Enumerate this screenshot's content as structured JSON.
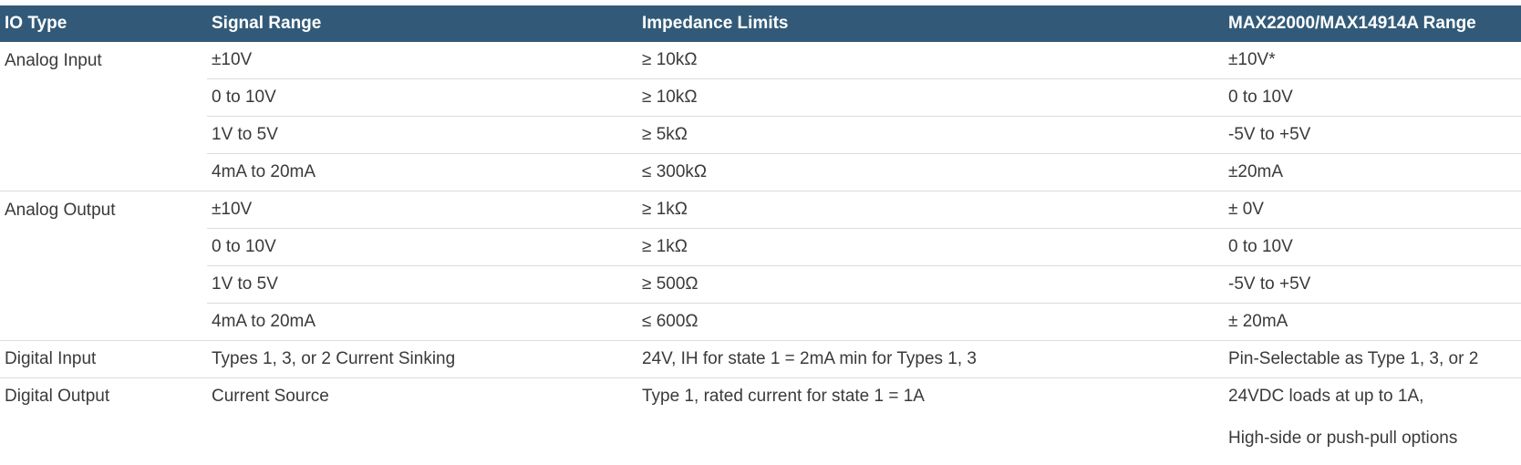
{
  "headers": [
    "IO Type",
    "Signal Range",
    "Impedance Limits",
    "MAX22000/MAX14914A Range"
  ],
  "groups": [
    {
      "io_type": "Analog Input",
      "rows": [
        {
          "signal": "±10V",
          "impedance": "≥ 10kΩ",
          "range": "±10V*"
        },
        {
          "signal": "0 to 10V",
          "impedance": "≥ 10kΩ",
          "range": "0 to 10V"
        },
        {
          "signal": "1V to 5V",
          "impedance": "≥ 5kΩ",
          "range": "-5V to +5V"
        },
        {
          "signal": "4mA to 20mA",
          "impedance": "≤ 300kΩ",
          "range": "±20mA"
        }
      ]
    },
    {
      "io_type": "Analog Output",
      "rows": [
        {
          "signal": "±10V",
          "impedance": "≥ 1kΩ",
          "range": "± 0V"
        },
        {
          "signal": "0 to 10V",
          "impedance": "≥ 1kΩ",
          "range": "0 to 10V"
        },
        {
          "signal": "1V to 5V",
          "impedance": "≥ 500Ω",
          "range": "-5V to +5V"
        },
        {
          "signal": "4mA to 20mA",
          "impedance": "≤ 600Ω",
          "range": "± 20mA"
        }
      ]
    },
    {
      "io_type": "Digital Input",
      "rows": [
        {
          "signal": "Types 1, 3, or 2 Current Sinking",
          "impedance": "24V, IH for state 1 = 2mA min for Types 1, 3",
          "range": "Pin-Selectable as Type 1, 3, or 2"
        }
      ]
    },
    {
      "io_type": "Digital Output",
      "rows": [
        {
          "signal": "Current Source",
          "impedance": "Type 1, rated current for state 1 = 1A",
          "range": "24VDC loads at up to 1A,",
          "range_line2": "High-side or push-pull options"
        }
      ]
    }
  ]
}
